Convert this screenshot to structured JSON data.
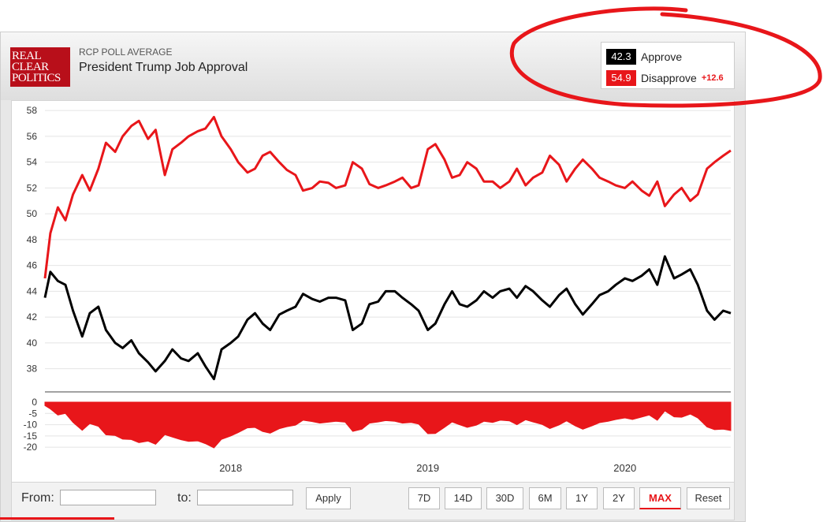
{
  "header": {
    "logo_lines": [
      "REAL",
      "CLEAR",
      "POLITICS"
    ],
    "kicker": "RCP POLL AVERAGE",
    "title": "President Trump Job Approval"
  },
  "legend": {
    "approve_value": "42.3",
    "approve_label": "Approve",
    "disapprove_value": "54.9",
    "disapprove_label": "Disapprove",
    "spread": "+12.6"
  },
  "colors": {
    "approve": "#000000",
    "disapprove": "#e8161a",
    "annotation": "#e8161a"
  },
  "footer": {
    "from_label": "From:",
    "to_label": "to:",
    "apply_label": "Apply",
    "ranges": [
      "7D",
      "14D",
      "30D",
      "6M",
      "1Y",
      "2Y",
      "MAX"
    ],
    "active_range": "MAX",
    "reset_label": "Reset"
  },
  "chart_data": {
    "type": "line",
    "x_axis_labels": [
      "2018",
      "2019",
      "2020"
    ],
    "x_axis_label_dates": [
      "2018-01-01",
      "2019-01-01",
      "2020-01-01"
    ],
    "x_range": [
      "2017-01-22",
      "2020-07-15"
    ],
    "ylim": [
      37,
      58.5
    ],
    "yticks": [
      "38",
      "40",
      "42",
      "44",
      "46",
      "48",
      "50",
      "52",
      "54",
      "56",
      "58"
    ],
    "grid": true,
    "legend_position": "top-right",
    "series": [
      {
        "name": "Approve",
        "color": "#000000",
        "x": [
          "2017-01-22",
          "2017-02-01",
          "2017-02-15",
          "2017-03-01",
          "2017-03-15",
          "2017-04-01",
          "2017-04-15",
          "2017-05-01",
          "2017-05-15",
          "2017-06-01",
          "2017-06-15",
          "2017-07-01",
          "2017-07-15",
          "2017-08-01",
          "2017-08-15",
          "2017-09-01",
          "2017-09-15",
          "2017-10-01",
          "2017-10-15",
          "2017-11-01",
          "2017-11-15",
          "2017-12-01",
          "2017-12-15",
          "2018-01-01",
          "2018-01-15",
          "2018-02-01",
          "2018-02-15",
          "2018-03-01",
          "2018-03-15",
          "2018-04-01",
          "2018-04-15",
          "2018-05-01",
          "2018-05-15",
          "2018-06-01",
          "2018-06-15",
          "2018-07-01",
          "2018-07-15",
          "2018-08-01",
          "2018-08-15",
          "2018-09-01",
          "2018-09-15",
          "2018-10-01",
          "2018-10-15",
          "2018-11-01",
          "2018-11-15",
          "2018-12-01",
          "2018-12-15",
          "2019-01-01",
          "2019-01-15",
          "2019-02-01",
          "2019-02-15",
          "2019-03-01",
          "2019-03-15",
          "2019-04-01",
          "2019-04-15",
          "2019-05-01",
          "2019-05-15",
          "2019-06-01",
          "2019-06-15",
          "2019-07-01",
          "2019-07-15",
          "2019-08-01",
          "2019-08-15",
          "2019-09-01",
          "2019-09-15",
          "2019-10-01",
          "2019-10-15",
          "2019-11-01",
          "2019-11-15",
          "2019-12-01",
          "2019-12-15",
          "2020-01-01",
          "2020-01-15",
          "2020-02-01",
          "2020-02-15",
          "2020-03-01",
          "2020-03-15",
          "2020-04-01",
          "2020-04-15",
          "2020-05-01",
          "2020-05-15",
          "2020-06-01",
          "2020-06-15",
          "2020-07-01",
          "2020-07-15"
        ],
        "values": [
          43.5,
          45.5,
          44.8,
          44.5,
          42.5,
          40.5,
          42.3,
          42.8,
          41.0,
          40.0,
          39.6,
          40.2,
          39.2,
          38.5,
          37.8,
          38.6,
          39.5,
          38.8,
          38.6,
          39.2,
          38.2,
          37.2,
          39.5,
          40.0,
          40.5,
          41.8,
          42.3,
          41.5,
          41.0,
          42.2,
          42.5,
          42.8,
          43.8,
          43.4,
          43.2,
          43.5,
          43.5,
          43.3,
          41.0,
          41.5,
          43.0,
          43.2,
          44.0,
          44.0,
          43.5,
          43.0,
          42.5,
          41.0,
          41.5,
          43.0,
          44.0,
          43.0,
          42.8,
          43.3,
          44.0,
          43.5,
          44.0,
          44.2,
          43.5,
          44.4,
          44.0,
          43.3,
          42.8,
          43.7,
          44.2,
          43.0,
          42.2,
          43.0,
          43.7,
          44.0,
          44.5,
          45.0,
          44.8,
          45.2,
          45.7,
          44.5,
          46.7,
          45.0,
          45.3,
          45.7,
          44.5,
          42.5,
          41.8,
          42.5,
          42.3
        ]
      },
      {
        "name": "Disapprove",
        "color": "#e8161a",
        "x": [
          "2017-01-22",
          "2017-02-01",
          "2017-02-15",
          "2017-03-01",
          "2017-03-15",
          "2017-04-01",
          "2017-04-15",
          "2017-05-01",
          "2017-05-15",
          "2017-06-01",
          "2017-06-15",
          "2017-07-01",
          "2017-07-15",
          "2017-08-01",
          "2017-08-15",
          "2017-09-01",
          "2017-09-15",
          "2017-10-01",
          "2017-10-15",
          "2017-11-01",
          "2017-11-15",
          "2017-12-01",
          "2017-12-15",
          "2018-01-01",
          "2018-01-15",
          "2018-02-01",
          "2018-02-15",
          "2018-03-01",
          "2018-03-15",
          "2018-04-01",
          "2018-04-15",
          "2018-05-01",
          "2018-05-15",
          "2018-06-01",
          "2018-06-15",
          "2018-07-01",
          "2018-07-15",
          "2018-08-01",
          "2018-08-15",
          "2018-09-01",
          "2018-09-15",
          "2018-10-01",
          "2018-10-15",
          "2018-11-01",
          "2018-11-15",
          "2018-12-01",
          "2018-12-15",
          "2019-01-01",
          "2019-01-15",
          "2019-02-01",
          "2019-02-15",
          "2019-03-01",
          "2019-03-15",
          "2019-04-01",
          "2019-04-15",
          "2019-05-01",
          "2019-05-15",
          "2019-06-01",
          "2019-06-15",
          "2019-07-01",
          "2019-07-15",
          "2019-08-01",
          "2019-08-15",
          "2019-09-01",
          "2019-09-15",
          "2019-10-01",
          "2019-10-15",
          "2019-11-01",
          "2019-11-15",
          "2019-12-01",
          "2019-12-15",
          "2020-01-01",
          "2020-01-15",
          "2020-02-01",
          "2020-02-15",
          "2020-03-01",
          "2020-03-15",
          "2020-04-01",
          "2020-04-15",
          "2020-05-01",
          "2020-05-15",
          "2020-06-01",
          "2020-06-15",
          "2020-07-01",
          "2020-07-15"
        ],
        "values": [
          45.0,
          48.5,
          50.5,
          49.5,
          51.5,
          53.0,
          51.8,
          53.5,
          55.5,
          54.8,
          56.0,
          56.8,
          57.2,
          55.8,
          56.5,
          53.0,
          55.0,
          55.5,
          56.0,
          56.4,
          56.6,
          57.5,
          56.0,
          55.0,
          54.0,
          53.2,
          53.5,
          54.5,
          54.8,
          54.0,
          53.4,
          53.0,
          51.8,
          52.0,
          52.5,
          52.4,
          52.0,
          52.2,
          54.0,
          53.5,
          52.3,
          52.0,
          52.2,
          52.5,
          52.8,
          52.0,
          52.2,
          55.0,
          55.4,
          54.2,
          52.8,
          53.0,
          54.0,
          53.5,
          52.5,
          52.5,
          52.0,
          52.5,
          53.5,
          52.2,
          52.8,
          53.2,
          54.5,
          53.8,
          52.5,
          53.5,
          54.2,
          53.5,
          52.8,
          52.5,
          52.2,
          52.0,
          52.5,
          51.8,
          51.4,
          52.5,
          50.6,
          51.5,
          52.0,
          51.0,
          51.5,
          53.5,
          54.0,
          54.5,
          54.9
        ]
      }
    ],
    "spread_panel": {
      "type": "area",
      "name": "Spread",
      "color": "#e8161a",
      "ylim": [
        -21,
        0
      ],
      "yticks": [
        "0",
        "-5",
        "-10",
        "-15",
        "-20"
      ]
    }
  }
}
